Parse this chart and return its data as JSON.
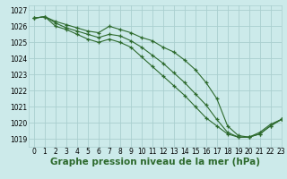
{
  "title": "Graphe pression niveau de la mer (hPa)",
  "bg_color": "#cceaea",
  "grid_color": "#aacfcf",
  "line_color": "#2d6a2d",
  "marker": "+",
  "xlim": [
    -0.5,
    23
  ],
  "ylim": [
    1018.5,
    1027.3
  ],
  "yticks": [
    1019,
    1020,
    1021,
    1022,
    1023,
    1024,
    1025,
    1026,
    1027
  ],
  "xticks": [
    0,
    1,
    2,
    3,
    4,
    5,
    6,
    7,
    8,
    9,
    10,
    11,
    12,
    13,
    14,
    15,
    16,
    17,
    18,
    19,
    20,
    21,
    22,
    23
  ],
  "series": [
    [
      1026.5,
      1026.6,
      1026.3,
      1026.1,
      1025.9,
      1025.7,
      1025.6,
      1026.0,
      1025.8,
      1025.6,
      1025.3,
      1025.1,
      1024.7,
      1024.4,
      1023.9,
      1023.3,
      1022.5,
      1021.5,
      1019.8,
      1019.2,
      1019.1,
      1019.4,
      1019.9,
      1020.2
    ],
    [
      1026.5,
      1026.6,
      1026.2,
      1025.9,
      1025.7,
      1025.5,
      1025.3,
      1025.5,
      1025.4,
      1025.1,
      1024.7,
      1024.2,
      1023.7,
      1023.1,
      1022.5,
      1021.8,
      1021.1,
      1020.2,
      1019.4,
      1019.1,
      1019.1,
      1019.3,
      1019.8,
      1020.2
    ],
    [
      1026.5,
      1026.6,
      1026.0,
      1025.8,
      1025.5,
      1025.2,
      1025.0,
      1025.2,
      1025.0,
      1024.7,
      1024.1,
      1023.5,
      1022.9,
      1022.3,
      1021.7,
      1021.0,
      1020.3,
      1019.8,
      1019.3,
      1019.1,
      1019.1,
      1019.3,
      1019.8,
      1020.2
    ]
  ],
  "title_fontsize": 7.5,
  "tick_fontsize": 5.5
}
